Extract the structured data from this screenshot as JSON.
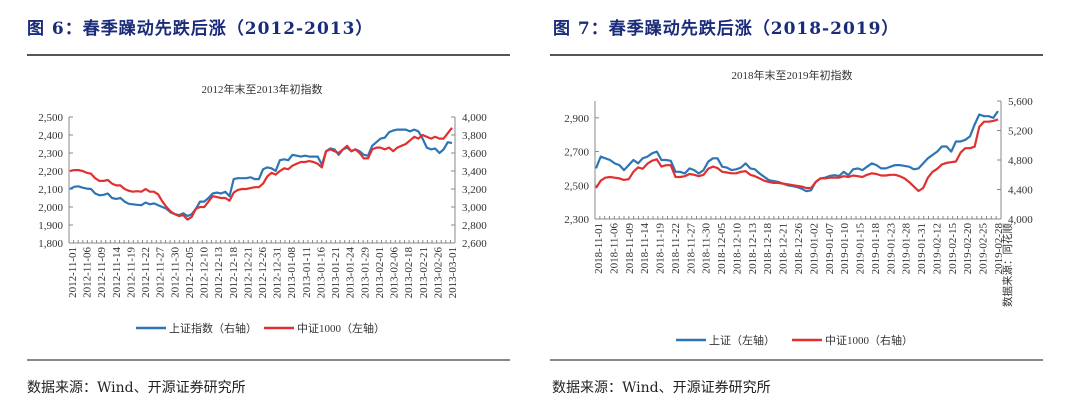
{
  "figures": [
    {
      "title": "图 6：春季躁动先跌后涨（2012-2013）",
      "source": "数据来源：Wind、开源证券研究所"
    },
    {
      "title": "图 7：春季躁动先跌后涨（2018-2019）",
      "source": "数据来源：Wind、开源证券研究所",
      "side_note": "数据来源：同花顺"
    }
  ],
  "chart_data": [
    {
      "type": "line",
      "title": "2012年末至2013年初指数",
      "xlabel": "",
      "ylabel": "",
      "x_tick_labels": [
        "2012-11-01",
        "2012-11-06",
        "2012-11-09",
        "2012-11-14",
        "2012-11-19",
        "2012-11-22",
        "2012-11-27",
        "2012-11-30",
        "2012-12-05",
        "2012-12-10",
        "2012-12-13",
        "2012-12-18",
        "2012-12-21",
        "2012-12-26",
        "2012-12-31",
        "2013-01-08",
        "2013-01-11",
        "2013-01-16",
        "2013-01-21",
        "2013-01-24",
        "2013-01-29",
        "2013-02-01",
        "2013-02-06",
        "2013-02-18",
        "2013-02-21",
        "2013-02-26",
        "2013-03-01"
      ],
      "y_left": {
        "range": [
          1800,
          2500
        ],
        "ticks": [
          "1,800",
          "1,900",
          "2,000",
          "2,100",
          "2,200",
          "2,300",
          "2,400",
          "2,500"
        ]
      },
      "y_right": {
        "range": [
          2600,
          4000
        ],
        "ticks": [
          "2,600",
          "2,800",
          "3,000",
          "3,200",
          "3,400",
          "3,600",
          "3,800",
          "4,000"
        ]
      },
      "grid": false,
      "legend_position": "bottom",
      "series": [
        {
          "name": "上证指数（右轴）",
          "axis": "right",
          "color": "#2e75b6",
          "values": [
            3200,
            3225,
            3230,
            3215,
            3205,
            3200,
            3150,
            3130,
            3135,
            3150,
            3100,
            3090,
            3100,
            3060,
            3035,
            3030,
            3025,
            3020,
            3050,
            3030,
            3040,
            3020,
            3000,
            2980,
            2940,
            2920,
            2910,
            2930,
            2900,
            2920,
            2980,
            3060,
            3060,
            3100,
            3150,
            3160,
            3150,
            3170,
            3120,
            3310,
            3320,
            3320,
            3320,
            3330,
            3310,
            3310,
            3420,
            3440,
            3430,
            3400,
            3520,
            3530,
            3520,
            3580,
            3570,
            3560,
            3570,
            3560,
            3560,
            3560,
            3470,
            3620,
            3650,
            3640,
            3580,
            3640,
            3660,
            3620,
            3640,
            3620,
            3580,
            3570,
            3680,
            3720,
            3760,
            3770,
            3830,
            3850,
            3860,
            3860,
            3860,
            3840,
            3860,
            3840,
            3760,
            3660,
            3640,
            3650,
            3600,
            3640,
            3720,
            3710
          ]
        },
        {
          "name": "中证1000（左轴）",
          "axis": "left",
          "color": "#e03030",
          "values": [
            2200,
            2205,
            2205,
            2200,
            2190,
            2185,
            2160,
            2145,
            2145,
            2150,
            2130,
            2120,
            2120,
            2100,
            2090,
            2085,
            2088,
            2085,
            2100,
            2085,
            2085,
            2070,
            2030,
            2000,
            1975,
            1960,
            1950,
            1955,
            1930,
            1945,
            1990,
            2000,
            2000,
            2030,
            2060,
            2055,
            2050,
            2050,
            2035,
            2080,
            2095,
            2100,
            2100,
            2105,
            2110,
            2110,
            2130,
            2170,
            2190,
            2180,
            2200,
            2215,
            2210,
            2230,
            2240,
            2250,
            2250,
            2255,
            2250,
            2240,
            2220,
            2310,
            2320,
            2310,
            2300,
            2320,
            2340,
            2310,
            2320,
            2300,
            2270,
            2270,
            2320,
            2330,
            2330,
            2320,
            2330,
            2310,
            2330,
            2340,
            2350,
            2370,
            2390,
            2380,
            2400,
            2390,
            2380,
            2390,
            2380,
            2380,
            2410,
            2440
          ]
        }
      ]
    },
    {
      "type": "line",
      "title": "2018年末至2019年初指数",
      "xlabel": "",
      "ylabel": "",
      "x_tick_labels": [
        "2018-11-01",
        "2018-11-06",
        "2018-11-09",
        "2018-11-14",
        "2018-11-19",
        "2018-11-22",
        "2018-11-27",
        "2018-11-30",
        "2018-12-05",
        "2018-12-10",
        "2018-12-13",
        "2018-12-18",
        "2018-12-21",
        "2018-12-26",
        "2019-01-02",
        "2019-01-07",
        "2019-01-10",
        "2019-01-15",
        "2019-01-18",
        "2019-01-23",
        "2019-01-28",
        "2019-01-31",
        "2019-02-12",
        "2019-02-15",
        "2019-02-20",
        "2019-02-25",
        "2019-02-28"
      ],
      "y_left": {
        "range": [
          2300,
          3000
        ],
        "ticks": [
          "2,300",
          "2,500",
          "2,700",
          "2,900"
        ]
      },
      "y_right": {
        "range": [
          4000,
          5600
        ],
        "ticks": [
          "4,000",
          "4,400",
          "4,800",
          "5,200",
          "5,600"
        ]
      },
      "grid": false,
      "legend_position": "bottom",
      "series": [
        {
          "name": "上证（左轴）",
          "axis": "left",
          "color": "#2e75b6",
          "values": [
            2600,
            2670,
            2660,
            2650,
            2630,
            2620,
            2590,
            2620,
            2650,
            2630,
            2660,
            2670,
            2690,
            2700,
            2650,
            2650,
            2645,
            2580,
            2580,
            2570,
            2600,
            2590,
            2570,
            2590,
            2640,
            2660,
            2660,
            2610,
            2605,
            2590,
            2595,
            2605,
            2630,
            2600,
            2595,
            2570,
            2550,
            2530,
            2525,
            2520,
            2510,
            2500,
            2495,
            2490,
            2480,
            2465,
            2470,
            2520,
            2540,
            2545,
            2555,
            2560,
            2555,
            2580,
            2560,
            2595,
            2600,
            2590,
            2610,
            2630,
            2620,
            2600,
            2600,
            2610,
            2620,
            2620,
            2615,
            2610,
            2595,
            2600,
            2630,
            2660,
            2680,
            2700,
            2730,
            2730,
            2700,
            2760,
            2760,
            2770,
            2790,
            2860,
            2920,
            2910,
            2910,
            2900,
            2940
          ]
        },
        {
          "name": "中证1000（右轴）",
          "axis": "right",
          "color": "#e03030",
          "values": [
            4420,
            4520,
            4560,
            4570,
            4560,
            4550,
            4530,
            4540,
            4640,
            4700,
            4680,
            4750,
            4790,
            4810,
            4710,
            4730,
            4730,
            4570,
            4570,
            4580,
            4610,
            4600,
            4580,
            4600,
            4680,
            4710,
            4690,
            4640,
            4630,
            4620,
            4620,
            4640,
            4650,
            4600,
            4580,
            4550,
            4520,
            4500,
            4490,
            4490,
            4480,
            4470,
            4460,
            4450,
            4440,
            4420,
            4420,
            4500,
            4550,
            4550,
            4560,
            4560,
            4560,
            4580,
            4570,
            4590,
            4580,
            4570,
            4600,
            4620,
            4610,
            4590,
            4590,
            4600,
            4600,
            4580,
            4550,
            4500,
            4440,
            4380,
            4420,
            4560,
            4640,
            4680,
            4740,
            4760,
            4770,
            4780,
            4900,
            4960,
            4960,
            4980,
            5250,
            5320,
            5320,
            5330,
            5350
          ]
        }
      ]
    }
  ]
}
